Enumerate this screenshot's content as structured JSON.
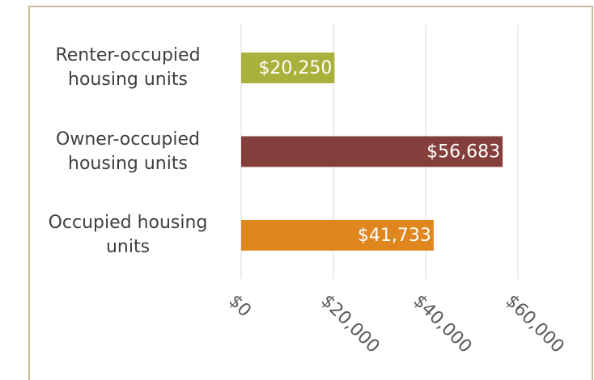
{
  "chart_data": {
    "type": "hbar",
    "categories": [
      "Renter-occupied housing units",
      "Owner-occupied housing units",
      "Occupied housing units"
    ],
    "values": [
      20250,
      56683,
      41733
    ],
    "value_labels": [
      "$20,250",
      "$56,683",
      "$41,733"
    ],
    "colors": [
      "#a9b03c",
      "#843f3c",
      "#e0861e"
    ],
    "xlim": [
      0,
      60000
    ],
    "xticks": [
      {
        "value": 0,
        "label": "$0"
      },
      {
        "value": 20000,
        "label": "$20,000"
      },
      {
        "value": 40000,
        "label": "$40,000"
      },
      {
        "value": 60000,
        "label": "$60,000"
      }
    ],
    "grid": true
  }
}
